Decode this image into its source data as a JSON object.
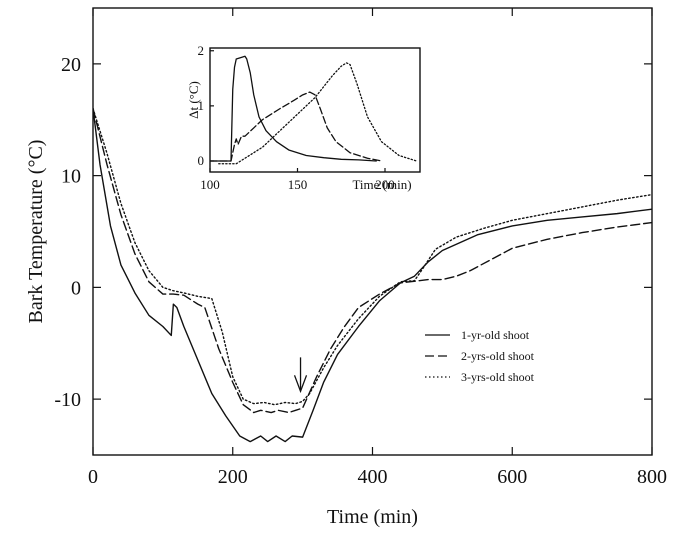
{
  "chart_data": [
    {
      "type": "line",
      "title": "",
      "xlabel": "Time (min)",
      "ylabel": "Bark Temperature (°C)",
      "xlim": [
        0,
        800
      ],
      "ylim": [
        -15,
        25
      ],
      "xticks": [
        0,
        200,
        400,
        600,
        800
      ],
      "yticks": [
        -10,
        0,
        10,
        20
      ],
      "xtick_labels": [
        "0",
        "200",
        "400",
        "600",
        "800"
      ],
      "ytick_labels": [
        "-10",
        "0",
        "10",
        "20"
      ],
      "grid": false,
      "legend_position": "right",
      "annotations": [
        {
          "type": "arrow",
          "x": 297,
          "y_from": -6.8,
          "y_to": -9.3
        }
      ],
      "series": [
        {
          "name": "1-yr-old shoot",
          "style": "solid",
          "x": [
            0,
            10,
            25,
            40,
            60,
            80,
            100,
            112,
            115,
            120,
            130,
            150,
            170,
            190,
            210,
            225,
            240,
            250,
            262,
            275,
            285,
            300,
            315,
            330,
            350,
            380,
            410,
            440,
            460,
            480,
            500,
            550,
            600,
            650,
            700,
            750,
            800
          ],
          "y": [
            16,
            11,
            5.5,
            2,
            -0.5,
            -2.5,
            -3.5,
            -4.3,
            -1.5,
            -1.8,
            -3.5,
            -6.5,
            -9.5,
            -11.5,
            -13.3,
            -13.8,
            -13.3,
            -13.8,
            -13.3,
            -13.8,
            -13.3,
            -13.4,
            -11,
            -8.5,
            -6,
            -3.5,
            -1.2,
            0.4,
            1,
            2.3,
            3.3,
            4.7,
            5.5,
            6,
            6.3,
            6.6,
            7
          ]
        },
        {
          "name": "2-yrs-old shoot",
          "style": "dashed",
          "x": [
            0,
            20,
            40,
            60,
            80,
            100,
            115,
            130,
            150,
            160,
            180,
            200,
            215,
            230,
            240,
            255,
            265,
            280,
            290,
            300,
            320,
            340,
            360,
            380,
            410,
            440,
            480,
            500,
            520,
            540,
            600,
            650,
            700,
            750,
            800
          ],
          "y": [
            16,
            11,
            6.5,
            3,
            0.5,
            -0.6,
            -0.6,
            -0.7,
            -1.5,
            -1.8,
            -5.5,
            -8.5,
            -10.5,
            -11.2,
            -11,
            -11.2,
            -11,
            -11.2,
            -11,
            -10.8,
            -8,
            -5.5,
            -3.5,
            -1.8,
            -0.6,
            0.4,
            0.7,
            0.7,
            1,
            1.5,
            3.5,
            4.3,
            4.9,
            5.4,
            5.8
          ]
        },
        {
          "name": "3-yrs-old shoot",
          "style": "dotted",
          "x": [
            0,
            20,
            40,
            60,
            80,
            100,
            115,
            130,
            150,
            170,
            185,
            200,
            215,
            230,
            245,
            260,
            275,
            290,
            300,
            310,
            330,
            350,
            380,
            410,
            440,
            460,
            470,
            490,
            520,
            560,
            600,
            650,
            700,
            750,
            800
          ],
          "y": [
            16,
            12,
            7.5,
            4,
            1.5,
            0,
            -0.3,
            -0.5,
            -0.8,
            -1,
            -4,
            -8,
            -10,
            -10.4,
            -10.3,
            -10.5,
            -10.3,
            -10.4,
            -10.2,
            -9.5,
            -7.2,
            -5.2,
            -2.8,
            -0.8,
            0.5,
            0.6,
            1.5,
            3.4,
            4.5,
            5.3,
            6,
            6.6,
            7.2,
            7.8,
            8.3
          ]
        }
      ]
    },
    {
      "type": "line",
      "title": "",
      "xlabel": "Time (min)",
      "ylabel": "Δt (°C)",
      "xlim": [
        100,
        220
      ],
      "ylim": [
        -0.2,
        2.05
      ],
      "xticks": [
        100,
        150,
        200
      ],
      "yticks": [
        0,
        1,
        2
      ],
      "xtick_labels": [
        "100",
        "150",
        "200"
      ],
      "ytick_labels": [
        "0",
        "1",
        "2"
      ],
      "grid": false,
      "series": [
        {
          "style": "solid",
          "x": [
            100,
            110,
            112,
            113,
            114,
            115,
            118,
            120,
            121,
            123,
            125,
            128,
            132,
            138,
            145,
            155,
            165,
            175,
            185,
            195
          ],
          "y": [
            0,
            0,
            0,
            1.3,
            1.7,
            1.85,
            1.88,
            1.9,
            1.85,
            1.6,
            1.2,
            0.8,
            0.55,
            0.35,
            0.2,
            0.1,
            0.06,
            0.03,
            0.02,
            0.0
          ]
        },
        {
          "style": "dashed",
          "x": [
            100,
            110,
            112,
            114,
            115,
            116,
            118,
            120,
            125,
            130,
            140,
            148,
            153,
            157,
            160,
            163,
            167,
            172,
            180,
            190,
            198
          ],
          "y": [
            0,
            0,
            0,
            0.3,
            0.4,
            0.3,
            0.45,
            0.45,
            0.6,
            0.75,
            0.95,
            1.1,
            1.2,
            1.25,
            1.2,
            0.95,
            0.6,
            0.35,
            0.15,
            0.05,
            0.0
          ]
        },
        {
          "style": "dotted",
          "x": [
            105,
            112,
            115,
            120,
            125,
            130,
            140,
            150,
            160,
            165,
            170,
            175,
            178,
            180,
            184,
            190,
            198,
            208,
            218
          ],
          "y": [
            -0.05,
            -0.05,
            -0.05,
            0.05,
            0.15,
            0.25,
            0.55,
            0.85,
            1.15,
            1.35,
            1.55,
            1.72,
            1.78,
            1.75,
            1.4,
            0.8,
            0.35,
            0.1,
            0.0
          ]
        }
      ]
    }
  ]
}
